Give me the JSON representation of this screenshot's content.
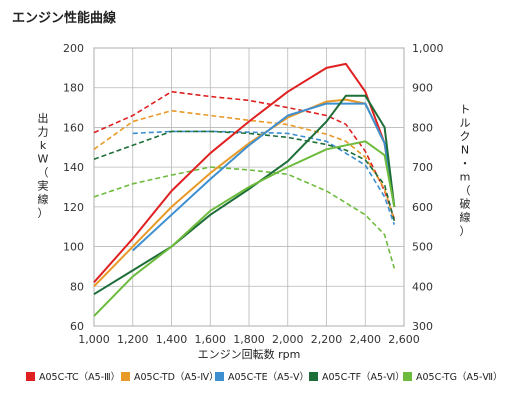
{
  "chart_data": {
    "type": "line",
    "title": "エンジン性能曲線",
    "xlabel": "エンジン回転数 rpm",
    "ylabel_left": "出力kW（実線）",
    "ylabel_right": "トルクN・m（破線）",
    "x_ticks": [
      "1,000",
      "1,200",
      "1,400",
      "1,600",
      "1,800",
      "2,000",
      "2,200",
      "2,400",
      "2,600"
    ],
    "y_left_ticks": [
      "60",
      "80",
      "100",
      "120",
      "140",
      "160",
      "180",
      "200"
    ],
    "y_right_ticks": [
      "300",
      "400",
      "500",
      "600",
      "700",
      "800",
      "900",
      "1,000"
    ],
    "xlim": [
      1000,
      2600
    ],
    "ylim_left": [
      60,
      200
    ],
    "ylim_right": [
      300,
      1000
    ],
    "grid": true,
    "legend_position": "bottom",
    "series": [
      {
        "name": "A05C-TC（A5-Ⅲ）",
        "color": "#e02020",
        "power": {
          "x": [
            1000,
            1200,
            1400,
            1600,
            1800,
            2000,
            2200,
            2300,
            2400,
            2500,
            2550
          ],
          "y": [
            82,
            104,
            128,
            147,
            163,
            178,
            190,
            192,
            178,
            152,
            120
          ]
        },
        "torque": {
          "x": [
            1000,
            1200,
            1400,
            1600,
            1800,
            2000,
            2200,
            2300,
            2400,
            2500,
            2550
          ],
          "y": [
            787,
            830,
            890,
            878,
            868,
            850,
            830,
            808,
            740,
            640,
            570
          ]
        }
      },
      {
        "name": "A05C-TD（A5-Ⅳ）",
        "color": "#e89a28",
        "power": {
          "x": [
            1000,
            1200,
            1400,
            1600,
            1800,
            2000,
            2200,
            2300,
            2400,
            2500,
            2550
          ],
          "y": [
            80,
            100,
            120,
            137,
            152,
            165,
            173,
            174,
            172,
            152,
            120
          ]
        },
        "torque": {
          "x": [
            1000,
            1200,
            1400,
            1600,
            1800,
            2000,
            2200,
            2300,
            2400,
            2500,
            2550
          ],
          "y": [
            745,
            815,
            842,
            830,
            818,
            807,
            783,
            765,
            725,
            645,
            565
          ]
        }
      },
      {
        "name": "A05C-TE（A5-Ⅴ）",
        "color": "#3d8fd0",
        "power": {
          "x": [
            1200,
            1400,
            1600,
            1800,
            2000,
            2200,
            2400,
            2500,
            2550
          ],
          "y": [
            98,
            116,
            134,
            151,
            166,
            172,
            172,
            152,
            120
          ]
        },
        "torque": {
          "x": [
            1200,
            1400,
            1600,
            1800,
            2000,
            2200,
            2400,
            2500,
            2550
          ],
          "y": [
            785,
            790,
            790,
            788,
            785,
            765,
            705,
            625,
            555
          ]
        }
      },
      {
        "name": "A05C-TF（A5-Ⅵ）",
        "color": "#1e6e3a",
        "power": {
          "x": [
            1000,
            1200,
            1400,
            1600,
            1800,
            2000,
            2200,
            2300,
            2400,
            2500,
            2550
          ],
          "y": [
            76,
            88,
            100,
            116,
            129,
            143,
            163,
            176,
            176,
            160,
            120
          ]
        },
        "torque": {
          "x": [
            1000,
            1200,
            1400,
            1600,
            1800,
            2000,
            2200,
            2300,
            2400,
            2500,
            2550
          ],
          "y": [
            720,
            755,
            790,
            790,
            785,
            775,
            757,
            743,
            718,
            655,
            565
          ]
        }
      },
      {
        "name": "A05C-TG（A5-Ⅶ）",
        "color": "#6dbb3c",
        "power": {
          "x": [
            1000,
            1200,
            1400,
            1600,
            1800,
            2000,
            2200,
            2400,
            2500,
            2550
          ],
          "y": [
            65,
            85,
            100,
            118,
            130,
            140,
            149,
            153,
            146,
            120
          ]
        },
        "torque": {
          "x": [
            1000,
            1200,
            1400,
            1600,
            1800,
            2000,
            2200,
            2400,
            2500,
            2550
          ],
          "y": [
            625,
            658,
            680,
            700,
            693,
            682,
            640,
            580,
            530,
            445
          ]
        }
      }
    ]
  }
}
